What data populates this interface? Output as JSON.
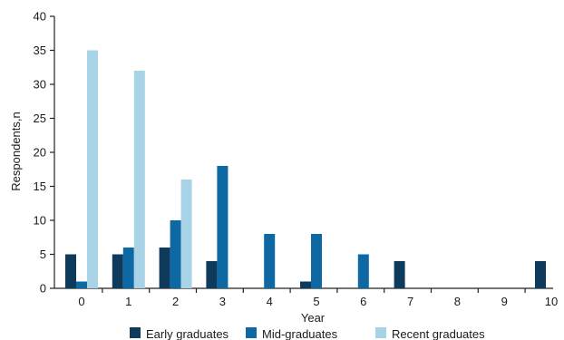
{
  "chart_data": {
    "type": "bar",
    "xlabel": "Year",
    "ylabel": "Respondents,n",
    "ylim": [
      0,
      40
    ],
    "yticks": [
      0,
      5,
      10,
      15,
      20,
      25,
      30,
      35,
      40
    ],
    "categories": [
      "0",
      "1",
      "2",
      "3",
      "4",
      "5",
      "6",
      "7",
      "8",
      "9",
      "10"
    ],
    "series": [
      {
        "name": "Early graduates",
        "color": "#0e3a5c",
        "values": [
          5,
          5,
          6,
          4,
          0,
          1,
          0,
          4,
          0,
          0,
          4
        ]
      },
      {
        "name": "Mid-graduates",
        "color": "#0d68a3",
        "values": [
          1,
          6,
          10,
          18,
          8,
          8,
          5,
          0,
          0,
          0,
          0
        ]
      },
      {
        "name": "Recent graduates",
        "color": "#a8d3e6",
        "values": [
          35,
          32,
          16,
          0,
          0,
          0,
          0,
          0,
          0,
          0,
          0
        ]
      }
    ],
    "grid": false,
    "legend_position": "bottom"
  }
}
